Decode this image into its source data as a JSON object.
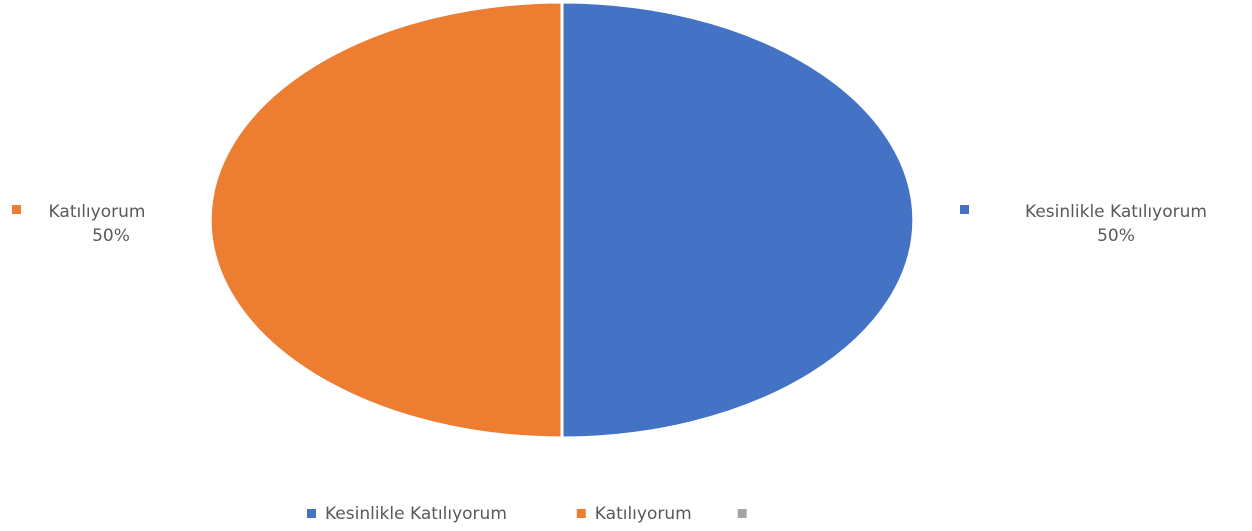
{
  "chart_data": {
    "type": "pie",
    "title": "",
    "slices": [
      {
        "name": "Kesinlikle Katılıyorum",
        "value": 50,
        "label": "50%",
        "color": "#4472C4"
      },
      {
        "name": "Katılıyorum",
        "value": 50,
        "label": "50%",
        "color": "#ED7D31"
      },
      {
        "name": "",
        "value": 0,
        "label": "",
        "color": "#A5A5A5"
      }
    ],
    "legend": {
      "position": "bottom",
      "entries": [
        "Kesinlikle Katılıyorum",
        "Katılıyorum",
        ""
      ]
    },
    "data_labels": {
      "show_category": true,
      "show_percent": true,
      "position": "outside"
    }
  }
}
